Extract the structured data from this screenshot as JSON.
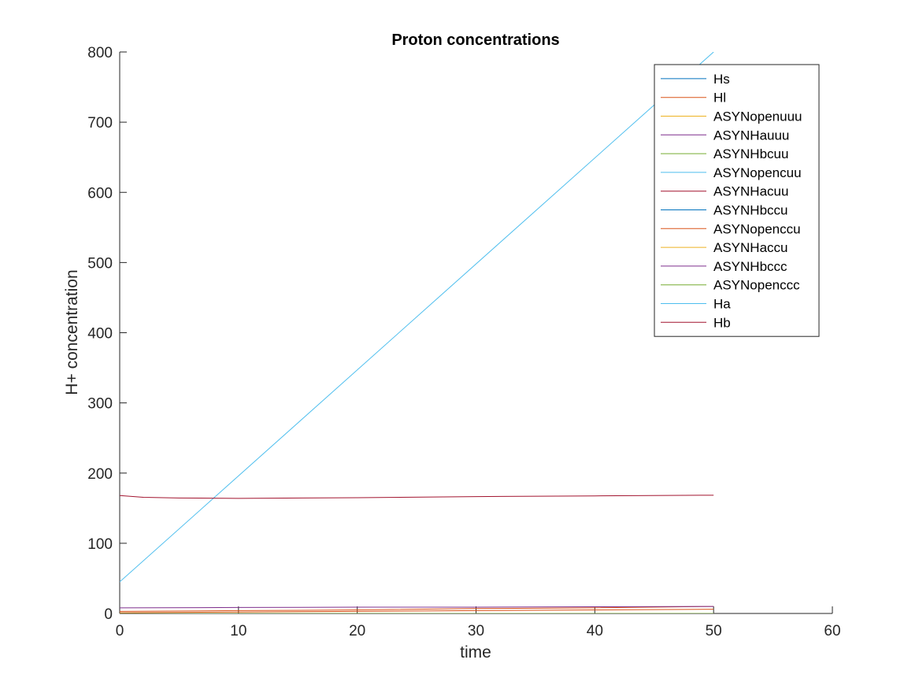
{
  "chart_data": {
    "type": "line",
    "title": "Proton concentrations",
    "xlabel": "time",
    "ylabel": "H+ concentration",
    "xlim": [
      0,
      60
    ],
    "ylim": [
      0,
      800
    ],
    "xticks": [
      0,
      10,
      20,
      30,
      40,
      50,
      60
    ],
    "yticks": [
      0,
      100,
      200,
      300,
      400,
      500,
      600,
      700,
      800
    ],
    "grid": false,
    "legend_position": "top-right",
    "series": [
      {
        "name": "Hs",
        "color": "#0072BD",
        "x": [
          0,
          50
        ],
        "y": [
          0,
          0
        ]
      },
      {
        "name": "Hl",
        "color": "#D95319",
        "x": [
          0,
          10,
          20,
          30,
          40,
          50
        ],
        "y": [
          3,
          4,
          5,
          7,
          8,
          10
        ]
      },
      {
        "name": "ASYNopenuuu",
        "color": "#EDB120",
        "x": [
          0,
          50
        ],
        "y": [
          0,
          0
        ]
      },
      {
        "name": "ASYNHauuu",
        "color": "#7E2F8E",
        "x": [
          0,
          10,
          20,
          30,
          40,
          50
        ],
        "y": [
          8,
          8.5,
          9,
          9,
          9.5,
          10
        ]
      },
      {
        "name": "ASYNHbcuu",
        "color": "#77AC30",
        "x": [
          0,
          50
        ],
        "y": [
          0,
          0
        ]
      },
      {
        "name": "ASYNopencuu",
        "color": "#4DBEEE",
        "x": [
          0,
          50
        ],
        "y": [
          0,
          0
        ]
      },
      {
        "name": "ASYNHacuu",
        "color": "#A2142F",
        "x": [
          0,
          50
        ],
        "y": [
          0,
          0
        ]
      },
      {
        "name": "ASYNHbccu",
        "color": "#0072BD",
        "x": [
          0,
          50
        ],
        "y": [
          0,
          0
        ]
      },
      {
        "name": "ASYNopenccu",
        "color": "#D95319",
        "x": [
          0,
          10,
          20,
          30,
          40,
          50
        ],
        "y": [
          1,
          2,
          3,
          4,
          5,
          6
        ]
      },
      {
        "name": "ASYNHaccu",
        "color": "#EDB120",
        "x": [
          0,
          50
        ],
        "y": [
          0,
          0
        ]
      },
      {
        "name": "ASYNHbccc",
        "color": "#7E2F8E",
        "x": [
          0,
          50
        ],
        "y": [
          0,
          0
        ]
      },
      {
        "name": "ASYNopenccc",
        "color": "#77AC30",
        "x": [
          0,
          50
        ],
        "y": [
          0,
          0
        ]
      },
      {
        "name": "Ha",
        "color": "#4DBEEE",
        "x": [
          0,
          50
        ],
        "y": [
          45,
          800
        ]
      },
      {
        "name": "Hb",
        "color": "#A2142F",
        "x": [
          0,
          2,
          5,
          10,
          20,
          30,
          40,
          50
        ],
        "y": [
          168,
          165.5,
          164.5,
          164,
          165,
          166.5,
          167.5,
          168.5
        ]
      }
    ]
  }
}
